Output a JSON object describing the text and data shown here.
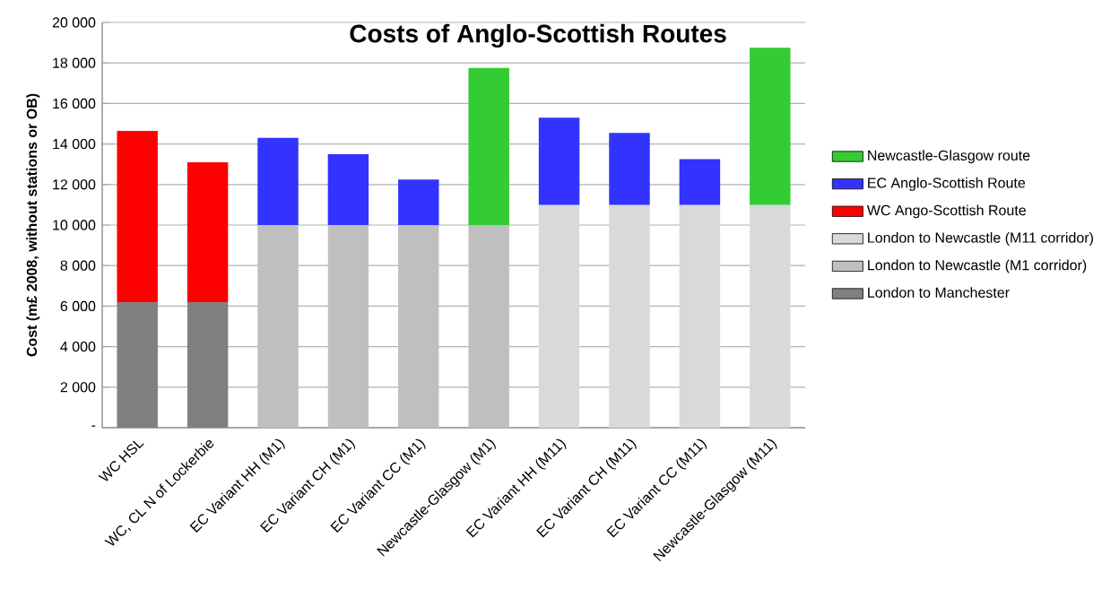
{
  "chart_data": {
    "type": "bar",
    "stacked": true,
    "title": "Costs of Anglo-Scottish Routes",
    "ylabel": "Cost (m£ 2008, without stations or OB)",
    "categories": [
      "WC HSL",
      "WC, CL N of Lockerbie",
      "EC Variant HH (M1)",
      "EC Variant CH (M1)",
      "EC Variant CC (M1)",
      "Newcastle-Glasgow (M1)",
      "EC Variant HH (M11)",
      "EC Variant CH (M11)",
      "EC Variant CC (M11)",
      "Newcastle-Glasgow (M11)"
    ],
    "series": [
      {
        "name": "London to Manchester",
        "color": "#808080",
        "values": [
          6200,
          6200,
          null,
          null,
          null,
          null,
          null,
          null,
          null,
          null
        ]
      },
      {
        "name": "London to Newcastle (M1 corridor)",
        "color": "#bfbfbf",
        "values": [
          null,
          null,
          10000,
          10000,
          10000,
          10000,
          null,
          null,
          null,
          null
        ]
      },
      {
        "name": "London to Newcastle (M11 corridor)",
        "color": "#d9d9d9",
        "values": [
          null,
          null,
          null,
          null,
          null,
          null,
          11000,
          11000,
          11000,
          11000
        ]
      },
      {
        "name": "WC Ango-Scottish Route",
        "color": "#ff0000",
        "values": [
          8450,
          6900,
          null,
          null,
          null,
          null,
          null,
          null,
          null,
          null
        ]
      },
      {
        "name": "EC Anglo-Scottish Route",
        "color": "#3333ff",
        "values": [
          null,
          null,
          4300,
          3500,
          2250,
          null,
          4300,
          3550,
          2250,
          null
        ]
      },
      {
        "name": "Newcastle-Glasgow route",
        "color": "#33cc33",
        "values": [
          null,
          null,
          null,
          null,
          null,
          7750,
          null,
          null,
          null,
          7750
        ]
      }
    ],
    "ylim": [
      0,
      20000
    ],
    "yticks": [
      {
        "value": 0,
        "label": "-"
      },
      {
        "value": 2000,
        "label": "2 000"
      },
      {
        "value": 4000,
        "label": "4 000"
      },
      {
        "value": 6000,
        "label": "6 000"
      },
      {
        "value": 8000,
        "label": "8 000"
      },
      {
        "value": 10000,
        "label": "10 000"
      },
      {
        "value": 12000,
        "label": "12 000"
      },
      {
        "value": 14000,
        "label": "14 000"
      },
      {
        "value": 16000,
        "label": "16 000"
      },
      {
        "value": 18000,
        "label": "18 000"
      },
      {
        "value": 20000,
        "label": "20 000"
      }
    ],
    "grid": "y",
    "legend": "right"
  }
}
